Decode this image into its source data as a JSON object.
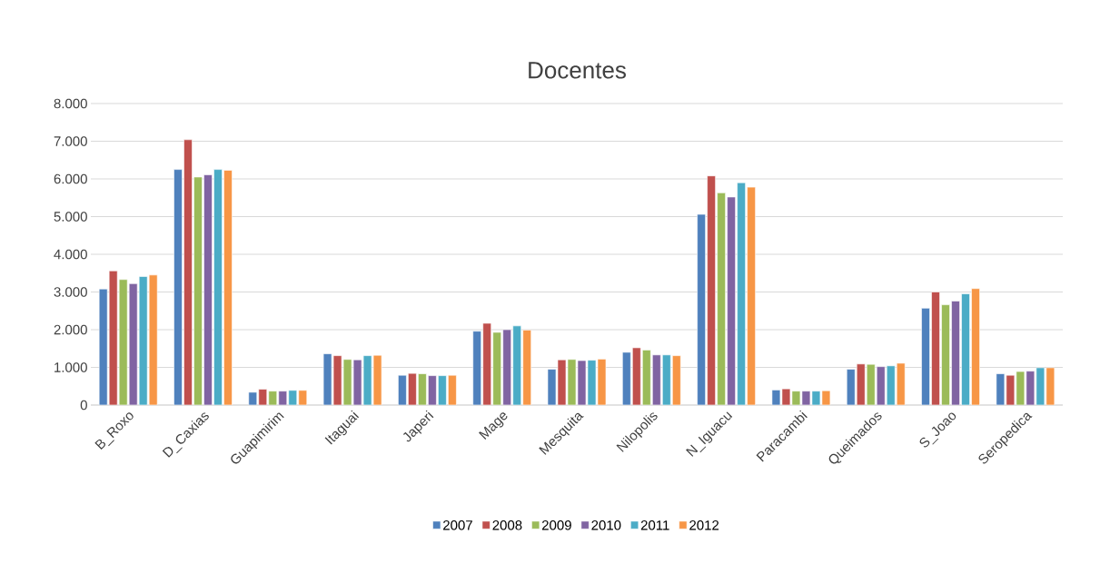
{
  "chart_data": {
    "type": "bar",
    "title": "Docentes",
    "categories": [
      "B_Roxo",
      "D_Caxias",
      "Guapimirim",
      "Itaguai",
      "Japeri",
      "Mage",
      "Mesquita",
      "Nilopolis",
      "N_Iguacu",
      "Paracambi",
      "Queimados",
      "S_Joao",
      "Seropedica"
    ],
    "series": [
      {
        "name": "2007",
        "color": "#4f81bd",
        "values": [
          3080,
          6250,
          340,
          1360,
          790,
          1960,
          950,
          1400,
          5060,
          400,
          950,
          2570,
          830
        ]
      },
      {
        "name": "2008",
        "color": "#c0504d",
        "values": [
          3560,
          7040,
          420,
          1310,
          840,
          2170,
          1200,
          1520,
          6080,
          430,
          1090,
          3000,
          790
        ]
      },
      {
        "name": "2009",
        "color": "#9bbb59",
        "values": [
          3330,
          6050,
          370,
          1210,
          830,
          1930,
          1210,
          1460,
          5630,
          370,
          1080,
          2660,
          890
        ]
      },
      {
        "name": "2010",
        "color": "#8064a2",
        "values": [
          3220,
          6110,
          370,
          1200,
          780,
          2000,
          1180,
          1330,
          5520,
          370,
          1020,
          2760,
          900
        ]
      },
      {
        "name": "2011",
        "color": "#4bacc6",
        "values": [
          3410,
          6250,
          390,
          1310,
          780,
          2100,
          1190,
          1330,
          5900,
          370,
          1040,
          2950,
          990
        ]
      },
      {
        "name": "2012",
        "color": "#f79646",
        "values": [
          3450,
          6230,
          390,
          1320,
          790,
          1990,
          1220,
          1310,
          5780,
          380,
          1110,
          3090,
          990
        ]
      }
    ],
    "ylim": [
      0,
      8000
    ],
    "yticks": [
      0,
      {
        "value": 1000,
        "label": "1.000"
      },
      {
        "value": 2000,
        "label": "2.000"
      },
      {
        "value": 3000,
        "label": "3.000"
      },
      {
        "value": 4000,
        "label": "4.000"
      },
      {
        "value": 5000,
        "label": "5.000"
      },
      {
        "value": 6000,
        "label": "6.000"
      },
      {
        "value": 7000,
        "label": "7.000"
      },
      {
        "value": 8000,
        "label": "8.000"
      }
    ],
    "grid": "y",
    "legend": "bottom"
  }
}
